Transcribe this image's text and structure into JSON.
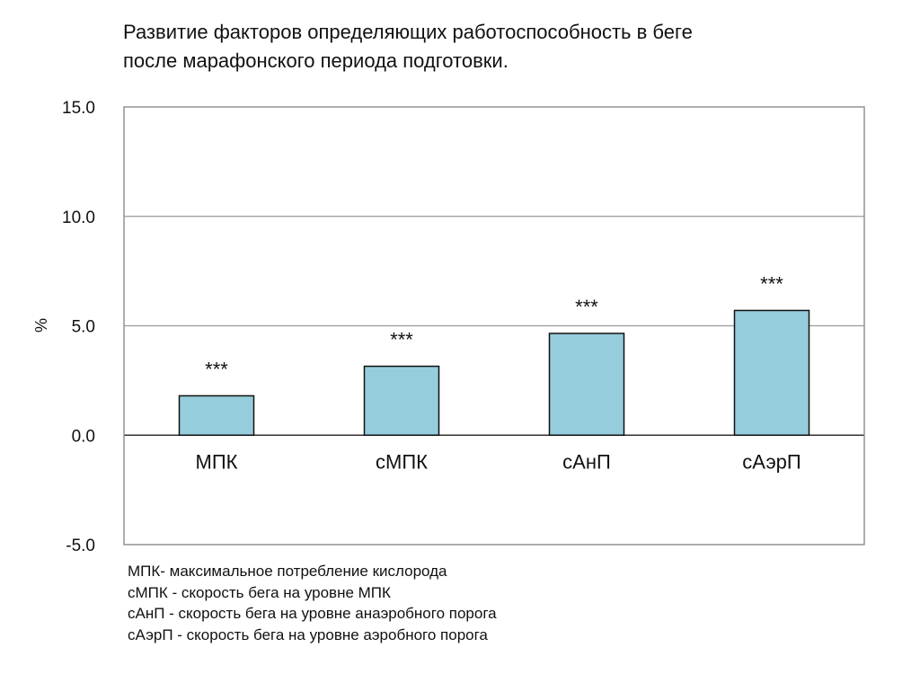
{
  "title_lines": [
    "Развитие факторов определяющих работоспособность в беге",
    "после марафонского периода подготовки."
  ],
  "legend_notes": [
    "МПК- максимальное потребление кислорода",
    "сМПК - скорость бега на уровне МПК",
    "сАнП - скорость бега на уровне анаэробного порога",
    "сАэрП - скорость бега на уровне аэробного порога"
  ],
  "colors": {
    "bar_fill": "#96cddc",
    "bar_stroke": "#111111",
    "gridline": "#9a9a9a",
    "frame": "#8c8c8c"
  },
  "chart_data": {
    "type": "bar",
    "title": "Развитие факторов определяющих работоспособность в беге после марафонского периода подготовки.",
    "categories": [
      "МПК",
      "сМПК",
      "сАнП",
      "сАэрП"
    ],
    "values": [
      1.8,
      3.15,
      4.65,
      5.7
    ],
    "annotations": [
      "***",
      "***",
      "***",
      "***"
    ],
    "ylabel": "%",
    "xlabel": "",
    "ylim": [
      -5.0,
      15.0
    ],
    "yticks": [
      15.0,
      10.0,
      5.0,
      0.0,
      -5.0
    ],
    "ytick_labels": [
      "15.0",
      "10.0",
      "5.0",
      "0.0",
      "-5.0"
    ],
    "grid": true,
    "legend": false
  }
}
